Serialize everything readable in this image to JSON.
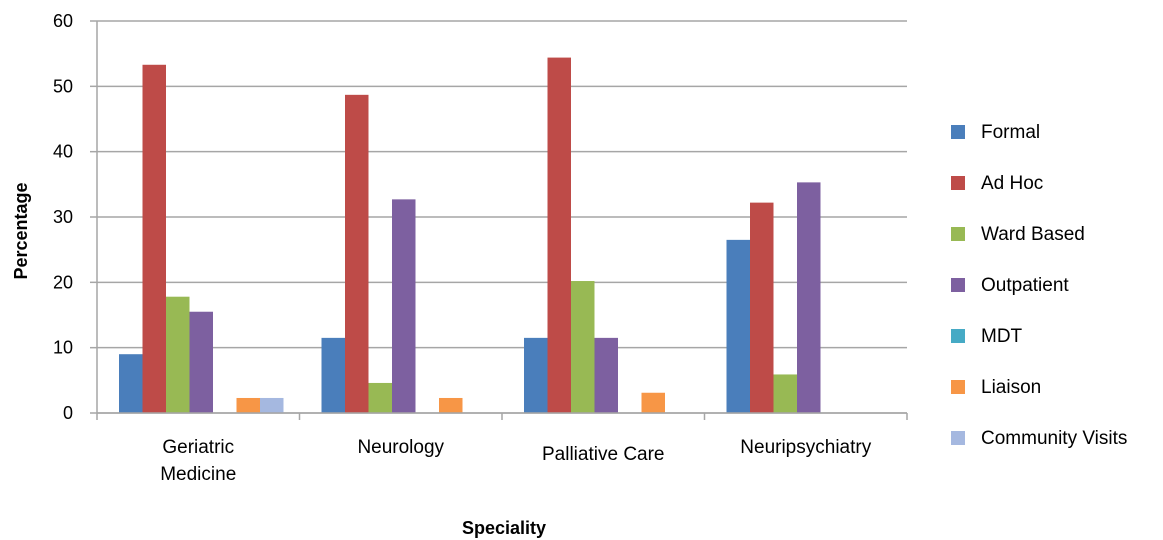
{
  "chart_data": {
    "type": "bar",
    "title": "",
    "xlabel": "Speciality",
    "ylabel": "Percentage",
    "ylim": [
      0,
      60
    ],
    "yticks": [
      0,
      10,
      20,
      30,
      40,
      50,
      60
    ],
    "grid": true,
    "legend_position": "right",
    "categories": [
      [
        "Geriatric",
        "Medicine"
      ],
      [
        "Neurology"
      ],
      [
        "Palliative Care"
      ],
      [
        "Neuripsychiatry"
      ]
    ],
    "series": [
      {
        "name": "Formal",
        "color": "#4a7ebb",
        "values": [
          9,
          11.5,
          11.5,
          26.5
        ]
      },
      {
        "name": "Ad Hoc",
        "color": "#be4b48",
        "values": [
          53.3,
          48.7,
          54.4,
          32.2
        ]
      },
      {
        "name": "Ward Based",
        "color": "#98b954",
        "values": [
          17.8,
          4.6,
          20.2,
          5.9
        ]
      },
      {
        "name": "Outpatient",
        "color": "#7d60a0",
        "values": [
          15.5,
          32.7,
          11.5,
          35.3
        ]
      },
      {
        "name": "MDT",
        "color": "#46aac5",
        "values": [
          0,
          0,
          0,
          0
        ]
      },
      {
        "name": "Liaison",
        "color": "#f79646",
        "values": [
          2.3,
          2.3,
          3.1,
          0
        ]
      },
      {
        "name": "Community Visits",
        "color": "#a5b8e0",
        "values": [
          2.3,
          0,
          0,
          0
        ]
      }
    ]
  }
}
